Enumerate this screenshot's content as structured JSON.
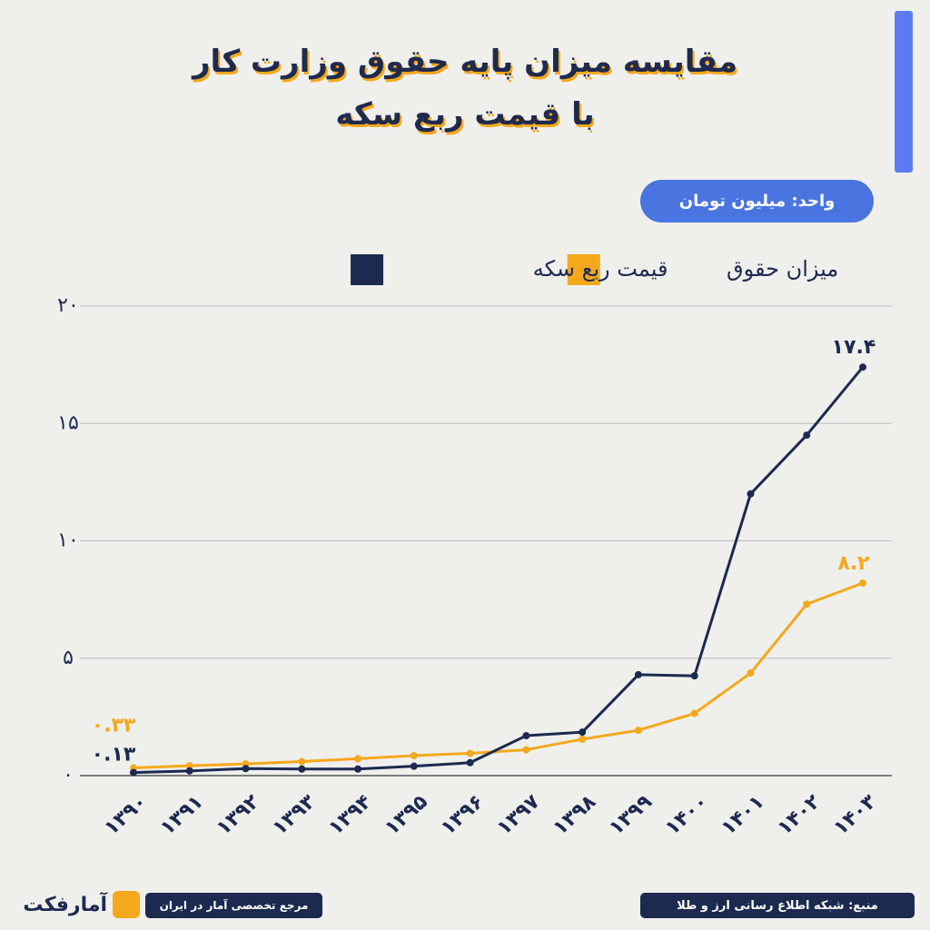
{
  "chart_data": {
    "type": "line",
    "title": [
      "مقایسه میزان پایه حقوق وزارت کار",
      "با قیمت ربع سکه"
    ],
    "unit": "واحد: میلیون تومان",
    "categories": [
      "۱۳۹۰",
      "۱۳۹۱",
      "۱۳۹۲",
      "۱۳۹۳",
      "۱۳۹۴",
      "۱۳۹۵",
      "۱۳۹۶",
      "۱۳۹۷",
      "۱۳۹۸",
      "۱۳۹۹",
      "۱۴۰۰",
      "۱۴۰۱",
      "۱۴۰۲",
      "۱۴۰۳"
    ],
    "series": [
      {
        "name": "میزان حقوق",
        "color": "#f5a81c",
        "values": [
          0.33,
          0.42,
          0.5,
          0.6,
          0.72,
          0.85,
          0.95,
          1.1,
          1.55,
          1.93,
          2.65,
          4.37,
          7.3,
          8.2
        ],
        "value_labels": [
          "۰.۳۳",
          null,
          null,
          null,
          null,
          null,
          null,
          null,
          null,
          null,
          null,
          null,
          null,
          "۸.۲"
        ]
      },
      {
        "name": "قیمت ربع سکه",
        "color": "#1c2a50",
        "values": [
          0.13,
          0.2,
          0.3,
          0.28,
          0.28,
          0.4,
          0.55,
          1.7,
          1.85,
          4.3,
          4.25,
          12.0,
          14.5,
          17.4
        ],
        "value_labels": [
          "۰.۱۳",
          null,
          null,
          null,
          null,
          null,
          null,
          null,
          null,
          null,
          null,
          null,
          null,
          "۱۷.۴"
        ]
      }
    ],
    "ylim": [
      0,
      20
    ],
    "yticks": [
      {
        "value": 0,
        "label": "۰"
      },
      {
        "value": 5,
        "label": "۵"
      },
      {
        "value": 10,
        "label": "۱۰"
      },
      {
        "value": 15,
        "label": "۱۵"
      },
      {
        "value": 20,
        "label": "۲۰"
      }
    ],
    "grid": true
  },
  "footer": {
    "source": "منبع: شبکه اطلاع رسانی ارز و طلا",
    "tagline": "مرجع تخصصی آمار در ایران",
    "brand": "آمارفکت"
  }
}
